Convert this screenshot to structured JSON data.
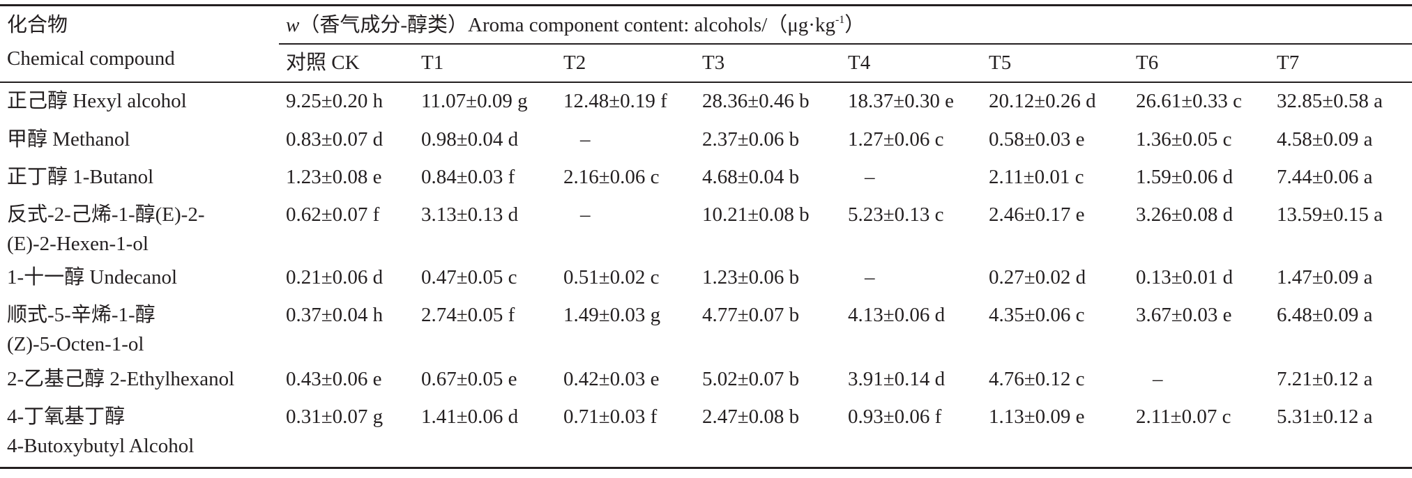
{
  "table": {
    "stub_header_cn": "化合物",
    "stub_header_en": "Chemical compound",
    "span_header": {
      "var": "w",
      "rest": "（香气成分-醇类）Aroma component content: alcohols/（μg·kg",
      "sup": "-1",
      "close": "）"
    },
    "columns": [
      "对照 CK",
      "T1",
      "T2",
      "T3",
      "T4",
      "T5",
      "T6",
      "T7"
    ],
    "rows": [
      {
        "name": [
          "正己醇 Hexyl alcohol"
        ],
        "values": [
          "9.25±0.20 h",
          "11.07±0.09 g",
          "12.48±0.19 f",
          "28.36±0.46 b",
          "18.37±0.30 e",
          "20.12±0.26 d",
          "26.61±0.33 c",
          "32.85±0.58 a"
        ]
      },
      {
        "name": [
          "甲醇 Methanol"
        ],
        "values": [
          "0.83±0.07 d",
          "0.98±0.04 d",
          "–",
          "2.37±0.06 b",
          "1.27±0.06 c",
          "0.58±0.03 e",
          "1.36±0.05 c",
          "4.58±0.09 a"
        ]
      },
      {
        "name": [
          "正丁醇 1-Butanol"
        ],
        "values": [
          "1.23±0.08 e",
          "0.84±0.03 f",
          "2.16±0.06 c",
          "4.68±0.04 b",
          "–",
          "2.11±0.01 c",
          "1.59±0.06 d",
          "7.44±0.06 a"
        ]
      },
      {
        "name": [
          "反式-2-己烯-1-醇(E)-2-",
          "(E)-2-Hexen-1-ol"
        ],
        "values": [
          "0.62±0.07 f",
          "3.13±0.13 d",
          "–",
          "10.21±0.08 b",
          "5.23±0.13 c",
          "2.46±0.17 e",
          "3.26±0.08 d",
          "13.59±0.15 a"
        ]
      },
      {
        "name": [
          "1-十一醇 Undecanol"
        ],
        "values": [
          "0.21±0.06 d",
          "0.47±0.05 c",
          "0.51±0.02 c",
          "1.23±0.06 b",
          "–",
          "0.27±0.02 d",
          "0.13±0.01 d",
          "1.47±0.09 a"
        ]
      },
      {
        "name": [
          "顺式-5-辛烯-1-醇",
          "(Z)-5-Octen-1-ol"
        ],
        "values": [
          "0.37±0.04 h",
          "2.74±0.05 f",
          "1.49±0.03 g",
          "4.77±0.07 b",
          "4.13±0.06 d",
          "4.35±0.06 c",
          "3.67±0.03 e",
          "6.48±0.09 a"
        ]
      },
      {
        "name": [
          "2-乙基己醇 2-Ethylhexanol"
        ],
        "values": [
          "0.43±0.06 e",
          "0.67±0.05 e",
          "0.42±0.03 e",
          "5.02±0.07 b",
          "3.91±0.14 d",
          "4.76±0.12 c",
          "–",
          "7.21±0.12 a"
        ]
      },
      {
        "name": [
          "4-丁氧基丁醇",
          "4-Butoxybutyl Alcohol"
        ],
        "values": [
          "0.31±0.07 g",
          "1.41±0.06 d",
          "0.71±0.03 f",
          "2.47±0.08 b",
          "0.93±0.06 f",
          "1.13±0.09 e",
          "2.11±0.07 c",
          "5.31±0.12 a"
        ]
      }
    ]
  }
}
